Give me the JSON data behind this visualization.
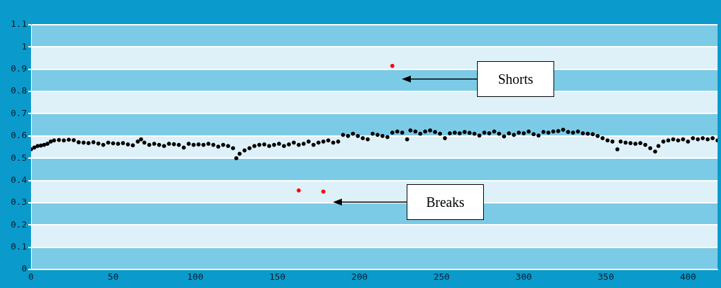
{
  "chart_data": {
    "type": "scatter",
    "xlim": [
      0,
      418
    ],
    "xticks": [
      0,
      50,
      100,
      150,
      200,
      250,
      300,
      350,
      400
    ],
    "ylim": [
      0,
      1.1
    ],
    "yticks": [
      0,
      0.1,
      0.2,
      0.3,
      0.4,
      0.5,
      0.6,
      0.7,
      0.8,
      0.9,
      1,
      1.1
    ],
    "grid": "y",
    "marker": "circle",
    "series": [
      {
        "color": "#000000",
        "x": [
          0,
          2,
          4,
          6,
          8,
          10,
          12,
          14,
          17,
          20,
          23,
          26,
          29,
          32,
          35,
          38,
          41,
          44,
          47,
          50,
          53,
          56,
          59,
          62,
          65,
          67,
          69,
          72,
          75,
          78,
          81,
          84,
          87,
          90,
          93,
          96,
          99,
          102,
          105,
          108,
          111,
          114,
          117,
          120,
          123,
          125,
          127,
          130,
          133,
          136,
          139,
          142,
          145,
          148,
          151,
          154,
          157,
          160,
          163,
          166,
          169,
          172,
          175,
          178,
          181,
          184,
          187,
          190,
          193,
          196,
          199,
          202,
          205,
          208,
          211,
          214,
          217,
          220,
          223,
          226,
          229,
          231,
          234,
          237,
          240,
          243,
          246,
          249,
          252,
          255,
          258,
          261,
          264,
          267,
          270,
          273,
          276,
          279,
          282,
          285,
          288,
          291,
          294,
          297,
          300,
          303,
          306,
          309,
          312,
          315,
          318,
          321,
          324,
          327,
          330,
          333,
          336,
          339,
          342,
          345,
          348,
          351,
          354,
          357,
          359,
          362,
          365,
          368,
          371,
          374,
          377,
          380,
          382,
          385,
          388,
          391,
          394,
          397,
          400,
          403,
          406,
          409,
          412,
          415,
          418
        ],
        "values": [
          0.54,
          0.548,
          0.555,
          0.557,
          0.56,
          0.565,
          0.575,
          0.58,
          0.582,
          0.58,
          0.583,
          0.581,
          0.572,
          0.57,
          0.568,
          0.572,
          0.566,
          0.56,
          0.57,
          0.567,
          0.565,
          0.568,
          0.562,
          0.558,
          0.575,
          0.585,
          0.57,
          0.56,
          0.565,
          0.56,
          0.555,
          0.565,
          0.563,
          0.56,
          0.548,
          0.565,
          0.56,
          0.562,
          0.56,
          0.565,
          0.56,
          0.552,
          0.56,
          0.555,
          0.545,
          0.5,
          0.52,
          0.535,
          0.545,
          0.555,
          0.56,
          0.562,
          0.555,
          0.56,
          0.565,
          0.555,
          0.562,
          0.57,
          0.56,
          0.565,
          0.575,
          0.56,
          0.57,
          0.575,
          0.58,
          0.57,
          0.575,
          0.605,
          0.6,
          0.61,
          0.6,
          0.59,
          0.585,
          0.61,
          0.605,
          0.6,
          0.595,
          0.615,
          0.62,
          0.615,
          0.585,
          0.625,
          0.62,
          0.61,
          0.62,
          0.625,
          0.618,
          0.61,
          0.59,
          0.612,
          0.615,
          0.612,
          0.618,
          0.614,
          0.61,
          0.602,
          0.615,
          0.612,
          0.62,
          0.61,
          0.598,
          0.612,
          0.605,
          0.615,
          0.612,
          0.62,
          0.608,
          0.602,
          0.618,
          0.615,
          0.62,
          0.622,
          0.628,
          0.618,
          0.615,
          0.62,
          0.612,
          0.61,
          0.608,
          0.6,
          0.59,
          0.58,
          0.575,
          0.54,
          0.575,
          0.57,
          0.568,
          0.565,
          0.568,
          0.56,
          0.545,
          0.53,
          0.555,
          0.575,
          0.58,
          0.585,
          0.58,
          0.585,
          0.575,
          0.59,
          0.585,
          0.59,
          0.585,
          0.59,
          0.58
        ]
      },
      {
        "color": "#ff0000",
        "x": [
          220,
          163,
          178
        ],
        "values": [
          0.915,
          0.355,
          0.35
        ]
      }
    ],
    "bands": [
      {
        "axis": "y",
        "from": 0,
        "to": 0.1,
        "color": "#7ccbe6"
      },
      {
        "axis": "y",
        "from": 0.2,
        "to": 0.3,
        "color": "#7ccbe6"
      },
      {
        "axis": "y",
        "from": 0.4,
        "to": 0.5,
        "color": "#7ccbe6"
      },
      {
        "axis": "y",
        "from": 0.6,
        "to": 0.7,
        "color": "#7ccbe6"
      },
      {
        "axis": "y",
        "from": 0.8,
        "to": 0.9,
        "color": "#7ccbe6"
      },
      {
        "axis": "y",
        "from": 1,
        "to": 1.1,
        "color": "#7ccbe6"
      }
    ],
    "annotations": [
      "Shorts",
      "Breaks"
    ]
  }
}
